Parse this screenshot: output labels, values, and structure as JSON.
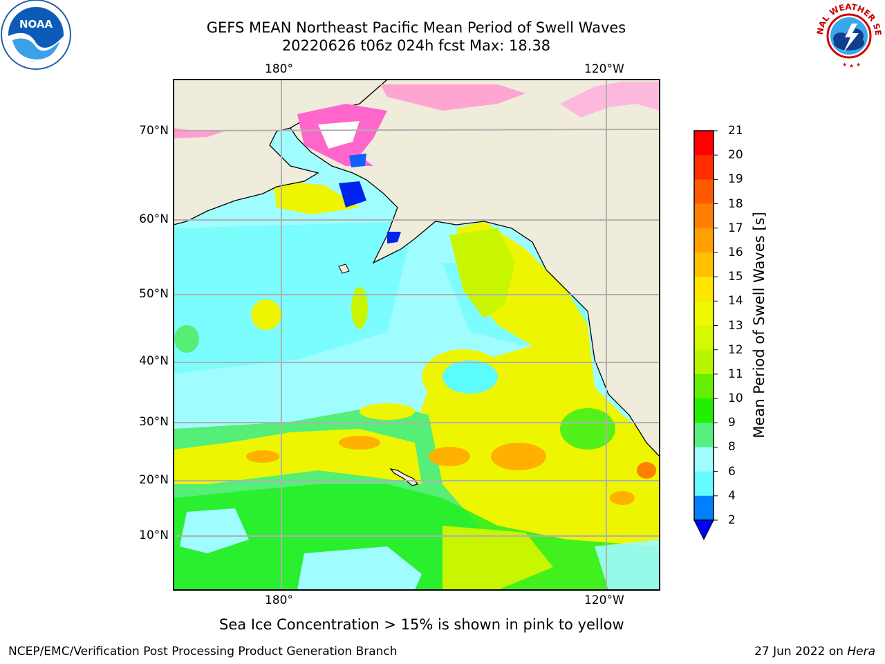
{
  "header": {
    "title_line1": "GEFS MEAN Northeast Pacific Mean Period of Swell Waves",
    "title_line2": "20220626 t06z 024h fcst   Max: 18.38"
  },
  "logos": {
    "left": "noaa-logo",
    "right": "nws-logo"
  },
  "map": {
    "lon_labels_top": [
      "180°",
      "120°W"
    ],
    "lon_labels_bottom": [
      "180°",
      "120°W"
    ],
    "lat_labels": [
      "70°N",
      "60°N",
      "50°N",
      "40°N",
      "30°N",
      "20°N",
      "10°N"
    ],
    "colors": {
      "land": "#efecdc",
      "grid": "#b0b0b0",
      "ocean_cyan": "#9ffcff",
      "ocean_aqua": "#5cfcfc",
      "green_light": "#55ee77",
      "green": "#22ee22",
      "yellow": "#eef500",
      "yellow_green": "#c8f500",
      "orange": "#ffb000",
      "ice_pink": "#ff66cc"
    }
  },
  "colorbar": {
    "label": "Mean Period of Swell Waves [s]",
    "ticks": [
      "21",
      "20",
      "19",
      "18",
      "17",
      "16",
      "15",
      "14",
      "13",
      "12",
      "11",
      "10",
      "9",
      "8",
      "6",
      "4",
      "2"
    ],
    "colors_top_to_bottom": [
      "#ff0000",
      "#ff2d00",
      "#ff5a00",
      "#ff8000",
      "#ffa000",
      "#ffc000",
      "#ffe600",
      "#f0f800",
      "#d6f800",
      "#b8f500",
      "#66ee00",
      "#22ee00",
      "#55f080",
      "#a0fcff",
      "#66fcff",
      "#00f0ff",
      "#0080ff"
    ],
    "extend_color": "#0000ff"
  },
  "footer": {
    "note": "Sea Ice Concentration > 15% is shown in pink to yellow",
    "left": "NCEP/EMC/Verification Post Processing Product Generation Branch",
    "right_date": "27 Jun 2022 on ",
    "right_host": "Hera"
  }
}
